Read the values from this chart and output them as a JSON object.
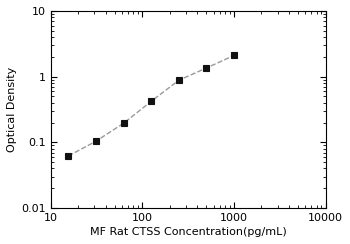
{
  "x_values": [
    15.625,
    31.25,
    62.5,
    125,
    250,
    500,
    1000
  ],
  "y_values": [
    0.062,
    0.104,
    0.195,
    0.42,
    0.88,
    1.35,
    2.1
  ],
  "xlim": [
    10,
    10000
  ],
  "ylim": [
    0.01,
    10
  ],
  "xlabel": "MF Rat CTSS Concentration(pg/mL)",
  "ylabel": "Optical Density",
  "line_color": "#999999",
  "marker_color": "#111111",
  "marker": "s",
  "marker_size": 4.5,
  "line_style": "--",
  "line_width": 1.0,
  "bg_color": "#ffffff",
  "xlabel_fontsize": 8,
  "ylabel_fontsize": 8,
  "tick_fontsize": 8,
  "ytick_labels": [
    "0.01",
    "0.1",
    "1",
    "10"
  ],
  "ytick_values": [
    0.01,
    0.1,
    1,
    10
  ],
  "xtick_labels": [
    "10",
    "100",
    "1000",
    "10000"
  ],
  "xtick_values": [
    10,
    100,
    1000,
    10000
  ]
}
